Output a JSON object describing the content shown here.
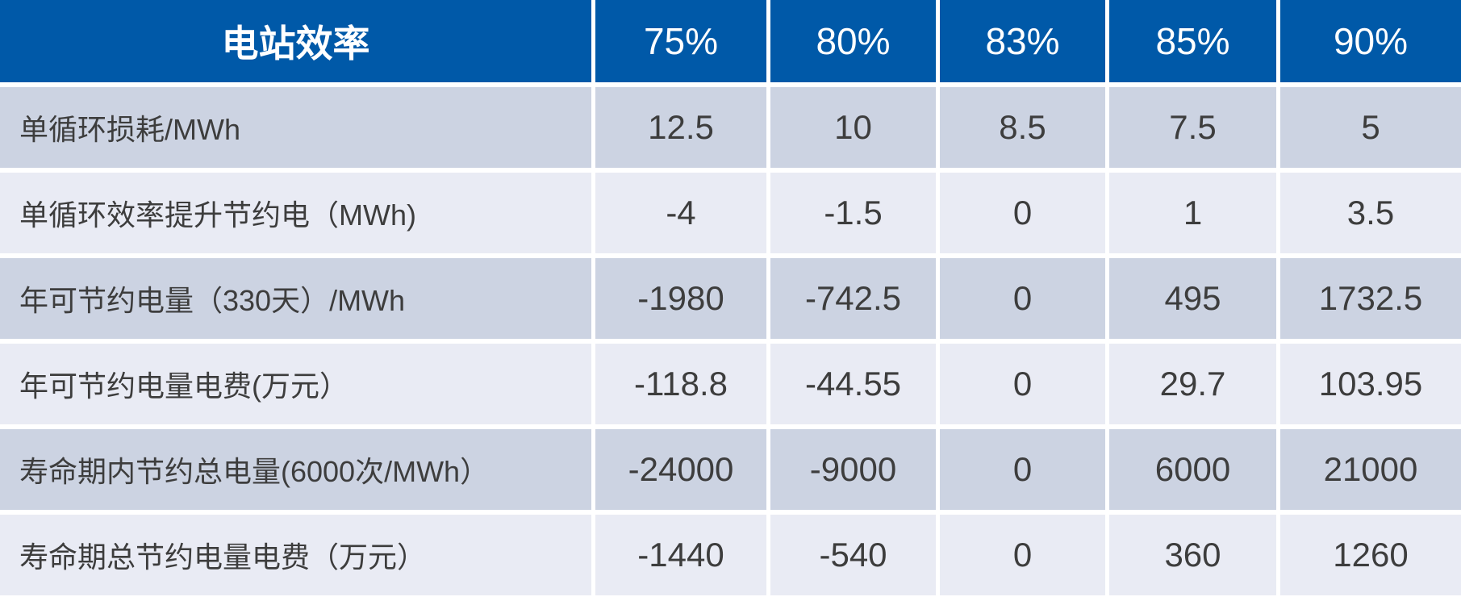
{
  "table": {
    "header": {
      "label": "电站效率",
      "columns": [
        "75%",
        "80%",
        "83%",
        "85%",
        "90%"
      ]
    },
    "rows": [
      {
        "label": "单循环损耗/MWh",
        "values": [
          "12.5",
          "10",
          "8.5",
          "7.5",
          "5"
        ]
      },
      {
        "label": "单循环效率提升节约电（MWh)",
        "values": [
          "-4",
          "-1.5",
          "0",
          "1",
          "3.5"
        ]
      },
      {
        "label": "年可节约电量（330天）/MWh",
        "values": [
          "-1980",
          "-742.5",
          "0",
          "495",
          "1732.5"
        ]
      },
      {
        "label": "年可节约电量电费(万元）",
        "values": [
          "-118.8",
          "-44.55",
          "0",
          "29.7",
          "103.95"
        ]
      },
      {
        "label": "寿命期内节约总电量(6000次/MWh）",
        "values": [
          "-24000",
          "-9000",
          "0",
          "6000",
          "21000"
        ]
      },
      {
        "label": "寿命期总节约电量电费（万元）",
        "values": [
          "-1440",
          "-540",
          "0",
          "360",
          "1260"
        ]
      }
    ]
  },
  "colors": {
    "header_bg": "#0059a8",
    "row_odd_bg": "#ccd3e2",
    "row_even_bg": "#e9ebf4",
    "header_text": "#ffffff",
    "body_text": "#3d3d3d"
  }
}
